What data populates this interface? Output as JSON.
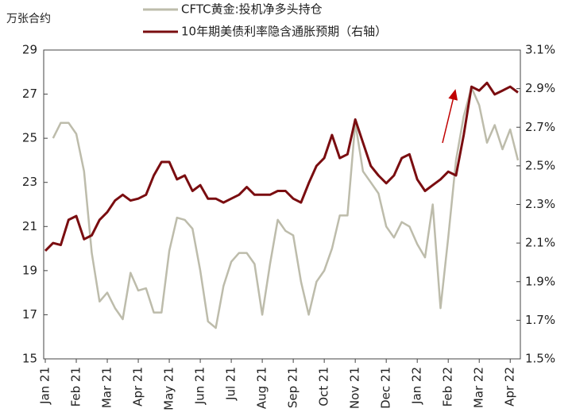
{
  "chart_data": {
    "type": "line",
    "ylabel": "万张合约",
    "categories": [
      "Jan 21",
      null,
      null,
      null,
      "Feb 21",
      null,
      null,
      null,
      "Mar 21",
      null,
      null,
      null,
      "Apr 21",
      null,
      null,
      null,
      "May 21",
      null,
      null,
      null,
      "Jun 21",
      null,
      null,
      null,
      "Jul 21",
      null,
      null,
      null,
      "Aug 21",
      null,
      null,
      null,
      "Sep 21",
      null,
      null,
      null,
      "Oct 21",
      null,
      null,
      null,
      "Nov 21",
      null,
      null,
      null,
      "Dec 21",
      null,
      null,
      null,
      "Jan 22",
      null,
      null,
      null,
      "Feb 22",
      null,
      null,
      null,
      "Mar 22",
      null,
      null,
      null,
      "Apr 22",
      null
    ],
    "series": [
      {
        "name": "CFTC黄金:投机净多头持仓",
        "color": "#bdbcab",
        "axis": "y",
        "values": [
          null,
          25.0,
          25.7,
          25.7,
          25.2,
          23.5,
          19.8,
          17.6,
          18.0,
          17.3,
          16.8,
          18.9,
          18.1,
          18.2,
          17.1,
          17.1,
          19.9,
          21.4,
          21.3,
          20.9,
          19.0,
          16.7,
          16.4,
          18.3,
          19.4,
          19.8,
          19.8,
          19.3,
          17.0,
          19.3,
          21.3,
          20.8,
          20.6,
          18.5,
          17.0,
          18.5,
          19.0,
          20.0,
          21.5,
          21.5,
          25.7,
          23.5,
          23.0,
          22.5,
          21.0,
          20.5,
          21.2,
          21.0,
          20.2,
          19.6,
          22.0,
          17.3,
          20.5,
          24.0,
          26.0,
          27.3,
          26.5,
          24.8,
          25.6,
          24.5,
          25.4,
          24.0
        ]
      },
      {
        "name": "10年期美债利率隐含通胀预期（右轴）",
        "color": "#7a0d10",
        "axis": "y2",
        "values": [
          2.06,
          2.1,
          2.09,
          2.22,
          2.24,
          2.12,
          2.14,
          2.22,
          2.26,
          2.32,
          2.35,
          2.32,
          2.33,
          2.35,
          2.45,
          2.52,
          2.52,
          2.43,
          2.45,
          2.37,
          2.4,
          2.33,
          2.33,
          2.31,
          2.33,
          2.35,
          2.39,
          2.35,
          2.35,
          2.35,
          2.37,
          2.37,
          2.33,
          2.31,
          2.41,
          2.5,
          2.54,
          2.66,
          2.54,
          2.56,
          2.74,
          2.62,
          2.5,
          2.45,
          2.41,
          2.45,
          2.54,
          2.56,
          2.43,
          2.37,
          2.4,
          2.43,
          2.47,
          2.45,
          2.66,
          2.91,
          2.89,
          2.93,
          2.87,
          2.89,
          2.91,
          2.88
        ]
      }
    ],
    "ylim": [
      15,
      29
    ],
    "yticks": [
      15,
      17,
      19,
      21,
      23,
      25,
      27,
      29
    ],
    "y2lim": [
      1.5,
      3.1
    ],
    "y2ticks": [
      {
        "value": 1.5,
        "label": "1.5%"
      },
      {
        "value": 1.7,
        "label": "1.7%"
      },
      {
        "value": 1.9,
        "label": "1.9%"
      },
      {
        "value": 2.1,
        "label": "2.1%"
      },
      {
        "value": 2.3,
        "label": "2.3%"
      },
      {
        "value": 2.5,
        "label": "2.5%"
      },
      {
        "value": 2.7,
        "label": "2.7%"
      },
      {
        "value": 2.9,
        "label": "2.9%"
      },
      {
        "value": 3.1,
        "label": "3.1%"
      }
    ]
  }
}
